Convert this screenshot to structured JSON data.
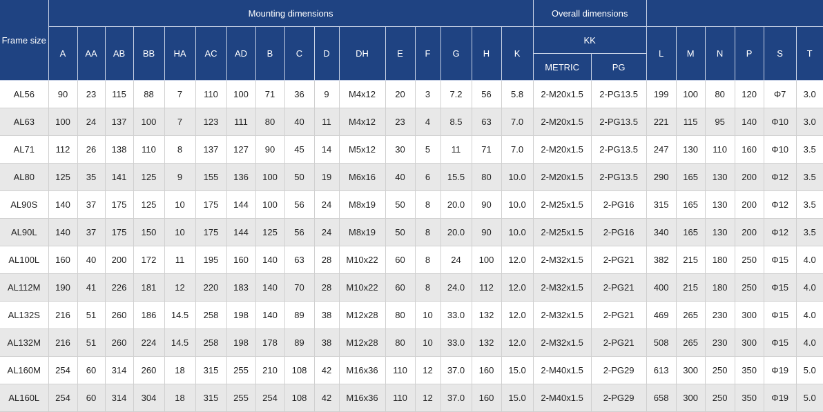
{
  "header": {
    "frame_size": "Frame size",
    "mounting": "Mounting dimensions",
    "overall": "Overall dimensions",
    "kk": "KK",
    "metric": "METRIC",
    "pg": "PG",
    "mounting_cols": [
      "A",
      "AA",
      "AB",
      "BB",
      "HA",
      "AC",
      "AD",
      "B",
      "C",
      "D",
      "DH",
      "E",
      "F",
      "G",
      "H",
      "K"
    ],
    "overall_cols": [
      "L",
      "M",
      "N",
      "P",
      "S",
      "T"
    ]
  },
  "rows": [
    [
      "AL56",
      "90",
      "23",
      "115",
      "88",
      "7",
      "110",
      "100",
      "71",
      "36",
      "9",
      "M4x12",
      "20",
      "3",
      "7.2",
      "56",
      "5.8",
      "2-M20x1.5",
      "2-PG13.5",
      "199",
      "100",
      "80",
      "120",
      "Φ7",
      "3.0"
    ],
    [
      "AL63",
      "100",
      "24",
      "137",
      "100",
      "7",
      "123",
      "111",
      "80",
      "40",
      "11",
      "M4x12",
      "23",
      "4",
      "8.5",
      "63",
      "7.0",
      "2-M20x1.5",
      "2-PG13.5",
      "221",
      "115",
      "95",
      "140",
      "Φ10",
      "3.0"
    ],
    [
      "AL71",
      "112",
      "26",
      "138",
      "110",
      "8",
      "137",
      "127",
      "90",
      "45",
      "14",
      "M5x12",
      "30",
      "5",
      "11",
      "71",
      "7.0",
      "2-M20x1.5",
      "2-PG13.5",
      "247",
      "130",
      "110",
      "160",
      "Φ10",
      "3.5"
    ],
    [
      "AL80",
      "125",
      "35",
      "141",
      "125",
      "9",
      "155",
      "136",
      "100",
      "50",
      "19",
      "M6x16",
      "40",
      "6",
      "15.5",
      "80",
      "10.0",
      "2-M20x1.5",
      "2-PG13.5",
      "290",
      "165",
      "130",
      "200",
      "Φ12",
      "3.5"
    ],
    [
      "AL90S",
      "140",
      "37",
      "175",
      "125",
      "10",
      "175",
      "144",
      "100",
      "56",
      "24",
      "M8x19",
      "50",
      "8",
      "20.0",
      "90",
      "10.0",
      "2-M25x1.5",
      "2-PG16",
      "315",
      "165",
      "130",
      "200",
      "Φ12",
      "3.5"
    ],
    [
      "AL90L",
      "140",
      "37",
      "175",
      "150",
      "10",
      "175",
      "144",
      "125",
      "56",
      "24",
      "M8x19",
      "50",
      "8",
      "20.0",
      "90",
      "10.0",
      "2-M25x1.5",
      "2-PG16",
      "340",
      "165",
      "130",
      "200",
      "Φ12",
      "3.5"
    ],
    [
      "AL100L",
      "160",
      "40",
      "200",
      "172",
      "11",
      "195",
      "160",
      "140",
      "63",
      "28",
      "M10x22",
      "60",
      "8",
      "24",
      "100",
      "12.0",
      "2-M32x1.5",
      "2-PG21",
      "382",
      "215",
      "180",
      "250",
      "Φ15",
      "4.0"
    ],
    [
      "AL112M",
      "190",
      "41",
      "226",
      "181",
      "12",
      "220",
      "183",
      "140",
      "70",
      "28",
      "M10x22",
      "60",
      "8",
      "24.0",
      "112",
      "12.0",
      "2-M32x1.5",
      "2-PG21",
      "400",
      "215",
      "180",
      "250",
      "Φ15",
      "4.0"
    ],
    [
      "AL132S",
      "216",
      "51",
      "260",
      "186",
      "14.5",
      "258",
      "198",
      "140",
      "89",
      "38",
      "M12x28",
      "80",
      "10",
      "33.0",
      "132",
      "12.0",
      "2-M32x1.5",
      "2-PG21",
      "469",
      "265",
      "230",
      "300",
      "Φ15",
      "4.0"
    ],
    [
      "AL132M",
      "216",
      "51",
      "260",
      "224",
      "14.5",
      "258",
      "198",
      "178",
      "89",
      "38",
      "M12x28",
      "80",
      "10",
      "33.0",
      "132",
      "12.0",
      "2-M32x1.5",
      "2-PG21",
      "508",
      "265",
      "230",
      "300",
      "Φ15",
      "4.0"
    ],
    [
      "AL160M",
      "254",
      "60",
      "314",
      "260",
      "18",
      "315",
      "255",
      "210",
      "108",
      "42",
      "M16x36",
      "110",
      "12",
      "37.0",
      "160",
      "15.0",
      "2-M40x1.5",
      "2-PG29",
      "613",
      "300",
      "250",
      "350",
      "Φ19",
      "5.0"
    ],
    [
      "AL160L",
      "254",
      "60",
      "314",
      "304",
      "18",
      "315",
      "255",
      "254",
      "108",
      "42",
      "M16x36",
      "110",
      "12",
      "37.0",
      "160",
      "15.0",
      "2-M40x1.5",
      "2-PG29",
      "658",
      "300",
      "250",
      "350",
      "Φ19",
      "5.0"
    ]
  ],
  "colors": {
    "header_bg": "#1f4382",
    "row_alt": "#e8e8e8"
  }
}
